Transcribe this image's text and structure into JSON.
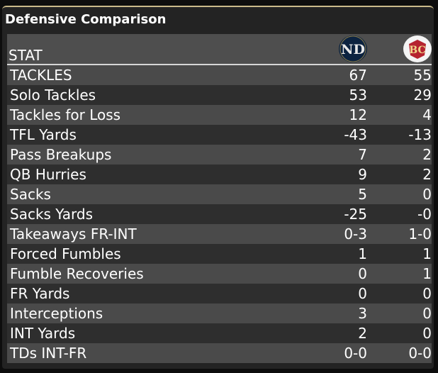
{
  "panel": {
    "title": "Defensive Comparison"
  },
  "table": {
    "stat_header": "STAT",
    "teams": [
      {
        "id": "nd",
        "logo_icon": "notre-dame-logo-icon",
        "logo_color": "#0c2340"
      },
      {
        "id": "bc",
        "logo_icon": "boston-college-logo-icon",
        "logo_color": "#8a1a2a"
      }
    ],
    "rows": [
      {
        "stat": "TACKLES",
        "nd": "67",
        "bc": "55"
      },
      {
        "stat": "Solo Tackles",
        "nd": "53",
        "bc": "29"
      },
      {
        "stat": "Tackles for Loss",
        "nd": "12",
        "bc": "4"
      },
      {
        "stat": "TFL Yards",
        "nd": "-43",
        "bc": "-13"
      },
      {
        "stat": "Pass Breakups",
        "nd": "7",
        "bc": "2"
      },
      {
        "stat": "QB Hurries",
        "nd": "9",
        "bc": "2"
      },
      {
        "stat": "Sacks",
        "nd": "5",
        "bc": "0"
      },
      {
        "stat": "Sacks Yards",
        "nd": "-25",
        "bc": "-0"
      },
      {
        "stat": "Takeaways FR-INT",
        "nd": "0-3",
        "bc": "1-0"
      },
      {
        "stat": "Forced Fumbles",
        "nd": "1",
        "bc": "1"
      },
      {
        "stat": "Fumble Recoveries",
        "nd": "0",
        "bc": "1"
      },
      {
        "stat": "FR Yards",
        "nd": "0",
        "bc": "0"
      },
      {
        "stat": "Interceptions",
        "nd": "3",
        "bc": "0"
      },
      {
        "stat": "INT Yards",
        "nd": "2",
        "bc": "0"
      },
      {
        "stat": "TDs INT-FR",
        "nd": "0-0",
        "bc": "0-0"
      }
    ]
  }
}
